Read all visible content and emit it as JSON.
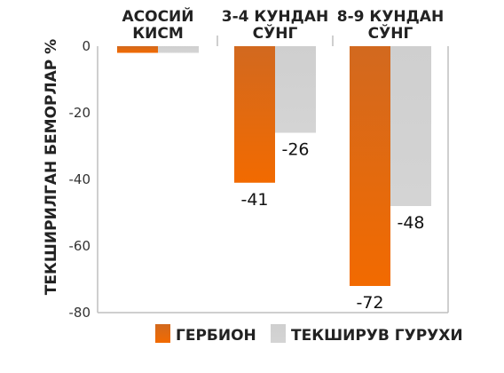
{
  "chart_data": {
    "type": "bar",
    "categories": [
      [
        "АСОСИЙ",
        "КИСМ"
      ],
      [
        "3-4 КУНДАН",
        "СЎНГ"
      ],
      [
        "8-9 КУНДАН",
        "СЎНГ"
      ]
    ],
    "series": [
      {
        "name": "ГЕРБИОН",
        "values": [
          -2,
          -41,
          -72
        ],
        "labels": [
          "",
          "-41",
          "-72"
        ],
        "color_top": "#d2691f",
        "color_bottom": "#f26a00"
      },
      {
        "name": "ТЕКШИРУВ ГУРУХИ",
        "values": [
          -2,
          -26,
          -48
        ],
        "labels": [
          "",
          "-26",
          "-48"
        ],
        "color_top": "#cfcfcf",
        "color_bottom": "#d4d4d4"
      }
    ],
    "ylabel": "ТЕКШИРИЛГАН БЕМОРЛАР %",
    "ylim": [
      -80,
      0
    ],
    "yticks": [
      0,
      -20,
      -40,
      -60,
      -80
    ],
    "ytick_labels": [
      "0",
      "-20",
      "-40",
      "-60",
      "-80"
    ],
    "grid": false,
    "legend_position": "bottom-right"
  }
}
